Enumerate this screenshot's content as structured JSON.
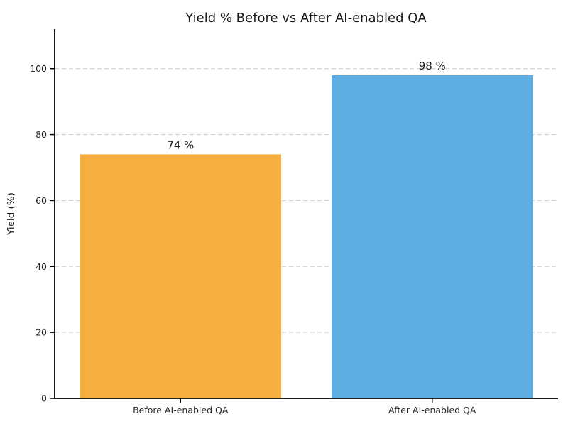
{
  "figure": {
    "background": "#ffffff"
  },
  "chart_data": {
    "type": "bar",
    "title": "Yield % Before vs After AI-enabled QA",
    "xlabel": "",
    "ylabel": "Yield (%)",
    "categories": [
      "Before AI-enabled QA",
      "After AI-enabled QA"
    ],
    "values": [
      74,
      98
    ],
    "value_labels": [
      "74 %",
      "98 %"
    ],
    "bar_colors": [
      "#F5B041",
      "#5DADE2"
    ],
    "yticks": [
      0,
      20,
      40,
      60,
      80,
      100
    ],
    "ylim": [
      0,
      112
    ],
    "grid": {
      "axis": "y",
      "style": "dashed",
      "color": "#cccccc"
    },
    "legend": "none",
    "title_color": "#1a1a1a",
    "label_color": "#1a1a1a",
    "tick_label_color": "#262626",
    "axis_color": "#000000"
  }
}
